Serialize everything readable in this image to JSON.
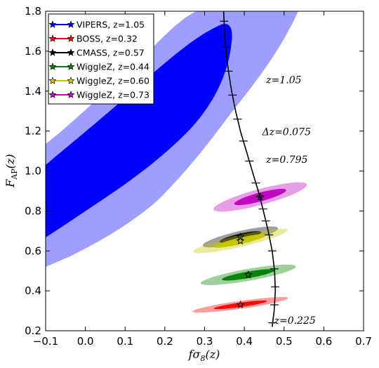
{
  "chart_data": {
    "type": "contour",
    "xlabel": "fσ8(z)",
    "ylabel": "F_AP(z)",
    "xlim": [
      -0.1,
      0.7
    ],
    "ylim": [
      0.2,
      1.8
    ],
    "xticks": [
      "−0.1",
      "0.0",
      "0.1",
      "0.2",
      "0.3",
      "0.4",
      "0.5",
      "0.6",
      "0.7"
    ],
    "yticks": [
      "0.2",
      "0.4",
      "0.6",
      "0.8",
      "1.0",
      "1.2",
      "1.4",
      "1.6",
      "1.8"
    ],
    "grid": false,
    "legend_position": "top-left",
    "series": [
      {
        "name": "VIPERS, z=1.05",
        "color": "#0000ff",
        "center": [
          0.1,
          1.3
        ]
      },
      {
        "name": "BOSS, z=0.32",
        "color": "#ff0000",
        "center": [
          0.39,
          0.33
        ],
        "sigma_fs8": 0.05,
        "sigma_fap": 0.02
      },
      {
        "name": "CMASS, z=0.57",
        "color": "#000000",
        "center": [
          0.39,
          0.67
        ],
        "sigma_fs8": 0.04,
        "sigma_fap": 0.03
      },
      {
        "name": "WiggleZ, z=0.44",
        "color": "#008000",
        "center": [
          0.41,
          0.48
        ],
        "sigma_fs8": 0.05,
        "sigma_fap": 0.03
      },
      {
        "name": "WiggleZ, z=0.60",
        "color": "#c8c800",
        "center": [
          0.39,
          0.65
        ],
        "sigma_fs8": 0.05,
        "sigma_fap": 0.03
      },
      {
        "name": "WiggleZ, z=0.73",
        "color": "#bf00bf",
        "center": [
          0.44,
          0.87
        ],
        "sigma_fs8": 0.05,
        "sigma_fap": 0.04
      }
    ],
    "model_curve": {
      "z_ticks_step": "Δz=0.075",
      "points": [
        [
          0.47,
          0.22
        ],
        [
          0.475,
          0.3
        ],
        [
          0.478,
          0.4
        ],
        [
          0.476,
          0.5
        ],
        [
          0.47,
          0.6
        ],
        [
          0.46,
          0.7
        ],
        [
          0.448,
          0.8
        ],
        [
          0.435,
          0.9
        ],
        [
          0.42,
          1.0
        ],
        [
          0.405,
          1.1
        ],
        [
          0.39,
          1.2
        ],
        [
          0.378,
          1.3
        ],
        [
          0.368,
          1.4
        ],
        [
          0.36,
          1.5
        ],
        [
          0.354,
          1.6
        ],
        [
          0.35,
          1.7
        ],
        [
          0.348,
          1.8
        ]
      ],
      "tick_fap": [
        0.24,
        0.33,
        0.42,
        0.51,
        0.6,
        0.68,
        0.75,
        0.81,
        0.87,
        0.94,
        1.05,
        1.15,
        1.26,
        1.38,
        1.5,
        1.62,
        1.75
      ]
    },
    "annotations": [
      {
        "text": "z=1.05",
        "x": 0.455,
        "y": 1.44
      },
      {
        "text": "Δz=0.075",
        "x": 0.445,
        "y": 1.18
      },
      {
        "text": "z=0.795",
        "x": 0.455,
        "y": 1.04
      },
      {
        "text": "z=0.225",
        "x": 0.475,
        "y": 0.235
      }
    ]
  }
}
